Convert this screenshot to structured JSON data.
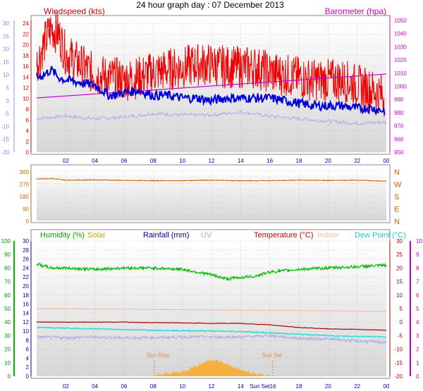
{
  "title": "24 hour graph day : 07 December 2013",
  "colors": {
    "wind": "#ee0000",
    "wind_avg": "#0000dd",
    "baro": "#cc00cc",
    "winddir": "#cc6600",
    "humidity": "#00bb00",
    "temperature": "#aa0000",
    "indoor": "#f2b394",
    "dewpoint": "#22dddd",
    "lavender": "#aaaaee",
    "solar": "#f5b040",
    "sunline": "#e08850"
  },
  "x_tick_labels": [
    "02",
    "04",
    "06",
    "08",
    "10",
    "12",
    "14",
    "16",
    "18",
    "20",
    "22",
    "00"
  ],
  "chart_data": [
    {
      "type": "line",
      "title": "24 hour graph day : 07 December 2013",
      "x_unit": "hour",
      "xlim": [
        0,
        24
      ],
      "left_axis_title": "Windspeed (kts)",
      "right_axis_title": "Barometer (hpa)",
      "left_ticks_outer": [
        "30",
        "25",
        "20",
        "15",
        "10",
        "5",
        "0",
        "-5",
        "-10",
        "-15",
        "-20"
      ],
      "left_ticks_inner": [
        "24",
        "22",
        "20",
        "18",
        "16",
        "14",
        "12",
        "10",
        "8",
        "6",
        "4",
        "2",
        "0"
      ],
      "right_ticks": [
        "1050",
        "1040",
        "1030",
        "1020",
        "1010",
        "1000",
        "990",
        "980",
        "970",
        "960",
        "950"
      ],
      "ylim_kts": [
        0,
        25
      ],
      "ylim_hpa": [
        950,
        1052
      ],
      "series": [
        {
          "key": "gust",
          "color": "#ee0000",
          "x": [
            0,
            0.5,
            1,
            1.5,
            2,
            3,
            4,
            5,
            6,
            7,
            8,
            9,
            10,
            11,
            12,
            13,
            14,
            15,
            16,
            17,
            18,
            19,
            20,
            21,
            22,
            23,
            23.9
          ],
          "y": [
            17,
            21,
            24,
            23,
            19,
            17,
            15,
            14.5,
            14,
            14.5,
            15.5,
            16,
            16.5,
            17,
            17,
            16.5,
            16.5,
            16.5,
            15.5,
            15,
            14.5,
            14,
            14,
            14,
            13,
            12,
            11
          ]
        },
        {
          "key": "avg",
          "color": "#0000dd",
          "x": [
            0,
            0.5,
            1,
            1.5,
            2,
            3,
            4,
            5,
            6,
            7,
            8,
            9,
            10,
            11,
            12,
            13,
            14,
            15,
            16,
            17,
            18,
            19,
            20,
            21,
            22,
            23,
            23.9
          ],
          "y": [
            14.5,
            15,
            16,
            14.5,
            14,
            13.5,
            13,
            11,
            11.5,
            12,
            11,
            11,
            10.5,
            10.5,
            10,
            10.5,
            10.5,
            10.5,
            10.5,
            10,
            9.5,
            9,
            9,
            9,
            8.5,
            8.5,
            8
          ]
        },
        {
          "key": "baro",
          "color": "#cc00cc",
          "x": [
            0,
            24
          ],
          "y": [
            992,
            1010.5
          ]
        },
        {
          "key": "lavender",
          "color": "#aaaaee",
          "x": [
            0,
            2,
            4,
            6,
            8,
            10,
            12,
            14,
            16,
            18,
            20,
            22,
            24
          ],
          "y": [
            6.5,
            7,
            6.5,
            6.8,
            7.5,
            7.2,
            7.2,
            7.8,
            7,
            6.5,
            6,
            5.6,
            5.8
          ]
        }
      ]
    },
    {
      "type": "line",
      "title": "",
      "x_unit": "hour",
      "xlim": [
        0,
        24
      ],
      "left_ticks": [
        "360",
        "270",
        "180",
        "90",
        "0"
      ],
      "right_ticks": [
        "N",
        "W",
        "S",
        "E",
        "N"
      ],
      "ylim": [
        0,
        360
      ],
      "series": [
        {
          "key": "winddir",
          "color": "#cc6600",
          "x": [
            0,
            1,
            2,
            4,
            6,
            8,
            10,
            12,
            14,
            16,
            18,
            20,
            22,
            24
          ],
          "y": [
            308,
            312,
            300,
            302,
            298,
            296,
            296,
            300,
            295,
            296,
            300,
            298,
            300,
            292
          ]
        }
      ]
    },
    {
      "type": "line",
      "title": "",
      "x_unit": "hour",
      "xlim": [
        0,
        24
      ],
      "legend": [
        "Humidity (%)",
        "Solar",
        "Rainfall (mm)",
        "UV",
        "Temperature (°C)",
        "Indoor",
        "Dew Point (°C)"
      ],
      "left_ticks_outer": [
        "100",
        "90",
        "80",
        "70",
        "60",
        "50",
        "40",
        "30",
        "20",
        "10",
        "0"
      ],
      "left_ticks_inner": [
        "30",
        "28",
        "26",
        "24",
        "22",
        "20",
        "18",
        "16",
        "14",
        "12",
        "10",
        "8",
        "6",
        "4",
        "2",
        "0"
      ],
      "right_ticks_inner": [
        "30",
        "25",
        "20",
        "15",
        "10",
        "5",
        "0",
        "-5",
        "-10",
        "-15",
        "-20"
      ],
      "right_ticks_outer": [
        "10",
        "9",
        "8",
        "7",
        "6",
        "5",
        "4",
        "3",
        "2",
        "1",
        "0"
      ],
      "ylim_humidity": [
        0,
        100
      ],
      "ylim_temp": [
        -20,
        30
      ],
      "sun_rise_label": "Sun Rise",
      "sun_set_label": "Sun Set",
      "sun_rise_hour": 8.1,
      "sun_set_hour": 16.2,
      "series": [
        {
          "key": "humidity",
          "color": "#00bb00",
          "x": [
            0,
            1,
            2,
            4,
            6,
            8,
            10,
            11,
            12,
            13,
            14,
            15,
            16,
            18,
            20,
            22,
            24
          ],
          "y": [
            83,
            80,
            80,
            79,
            80,
            80,
            79,
            77,
            75,
            72,
            73,
            74,
            77,
            79,
            80,
            81,
            82
          ]
        },
        {
          "key": "indoor",
          "color": "#f2b394",
          "x": [
            0,
            24
          ],
          "y": [
            50,
            48
          ]
        },
        {
          "key": "temperature",
          "color": "#aa0000",
          "x": [
            0,
            2,
            4,
            6,
            8,
            10,
            12,
            14,
            16,
            18,
            20,
            22,
            24
          ],
          "y": [
            0,
            0,
            0,
            0,
            -0.2,
            -0.3,
            -0.5,
            -0.5,
            -1,
            -2,
            -2.5,
            -2.7,
            -3
          ]
        },
        {
          "key": "dewpoint",
          "color": "#22dddd",
          "x": [
            0,
            4,
            8,
            12,
            14,
            16,
            18,
            20,
            22,
            24
          ],
          "y": [
            -2,
            -2.5,
            -3,
            -3.3,
            -3.5,
            -4,
            -4.5,
            -5,
            -5.3,
            -5.5
          ]
        },
        {
          "key": "lavender",
          "color": "#aaaaee",
          "x": [
            0,
            2,
            4,
            6,
            8,
            10,
            12,
            14,
            16,
            18,
            20,
            22,
            24
          ],
          "y": [
            -5.5,
            -5.8,
            -5.5,
            -5.8,
            -5.7,
            -5.5,
            -5.5,
            -5.5,
            -5,
            -6,
            -6.2,
            -7,
            -7.5
          ]
        },
        {
          "key": "solar",
          "color": "#f5b040",
          "x": [
            8.1,
            9,
            10,
            11,
            12,
            13,
            14,
            15,
            16.2
          ],
          "y": [
            0,
            2,
            3,
            7,
            11,
            8,
            4,
            1.5,
            0
          ]
        }
      ]
    }
  ]
}
